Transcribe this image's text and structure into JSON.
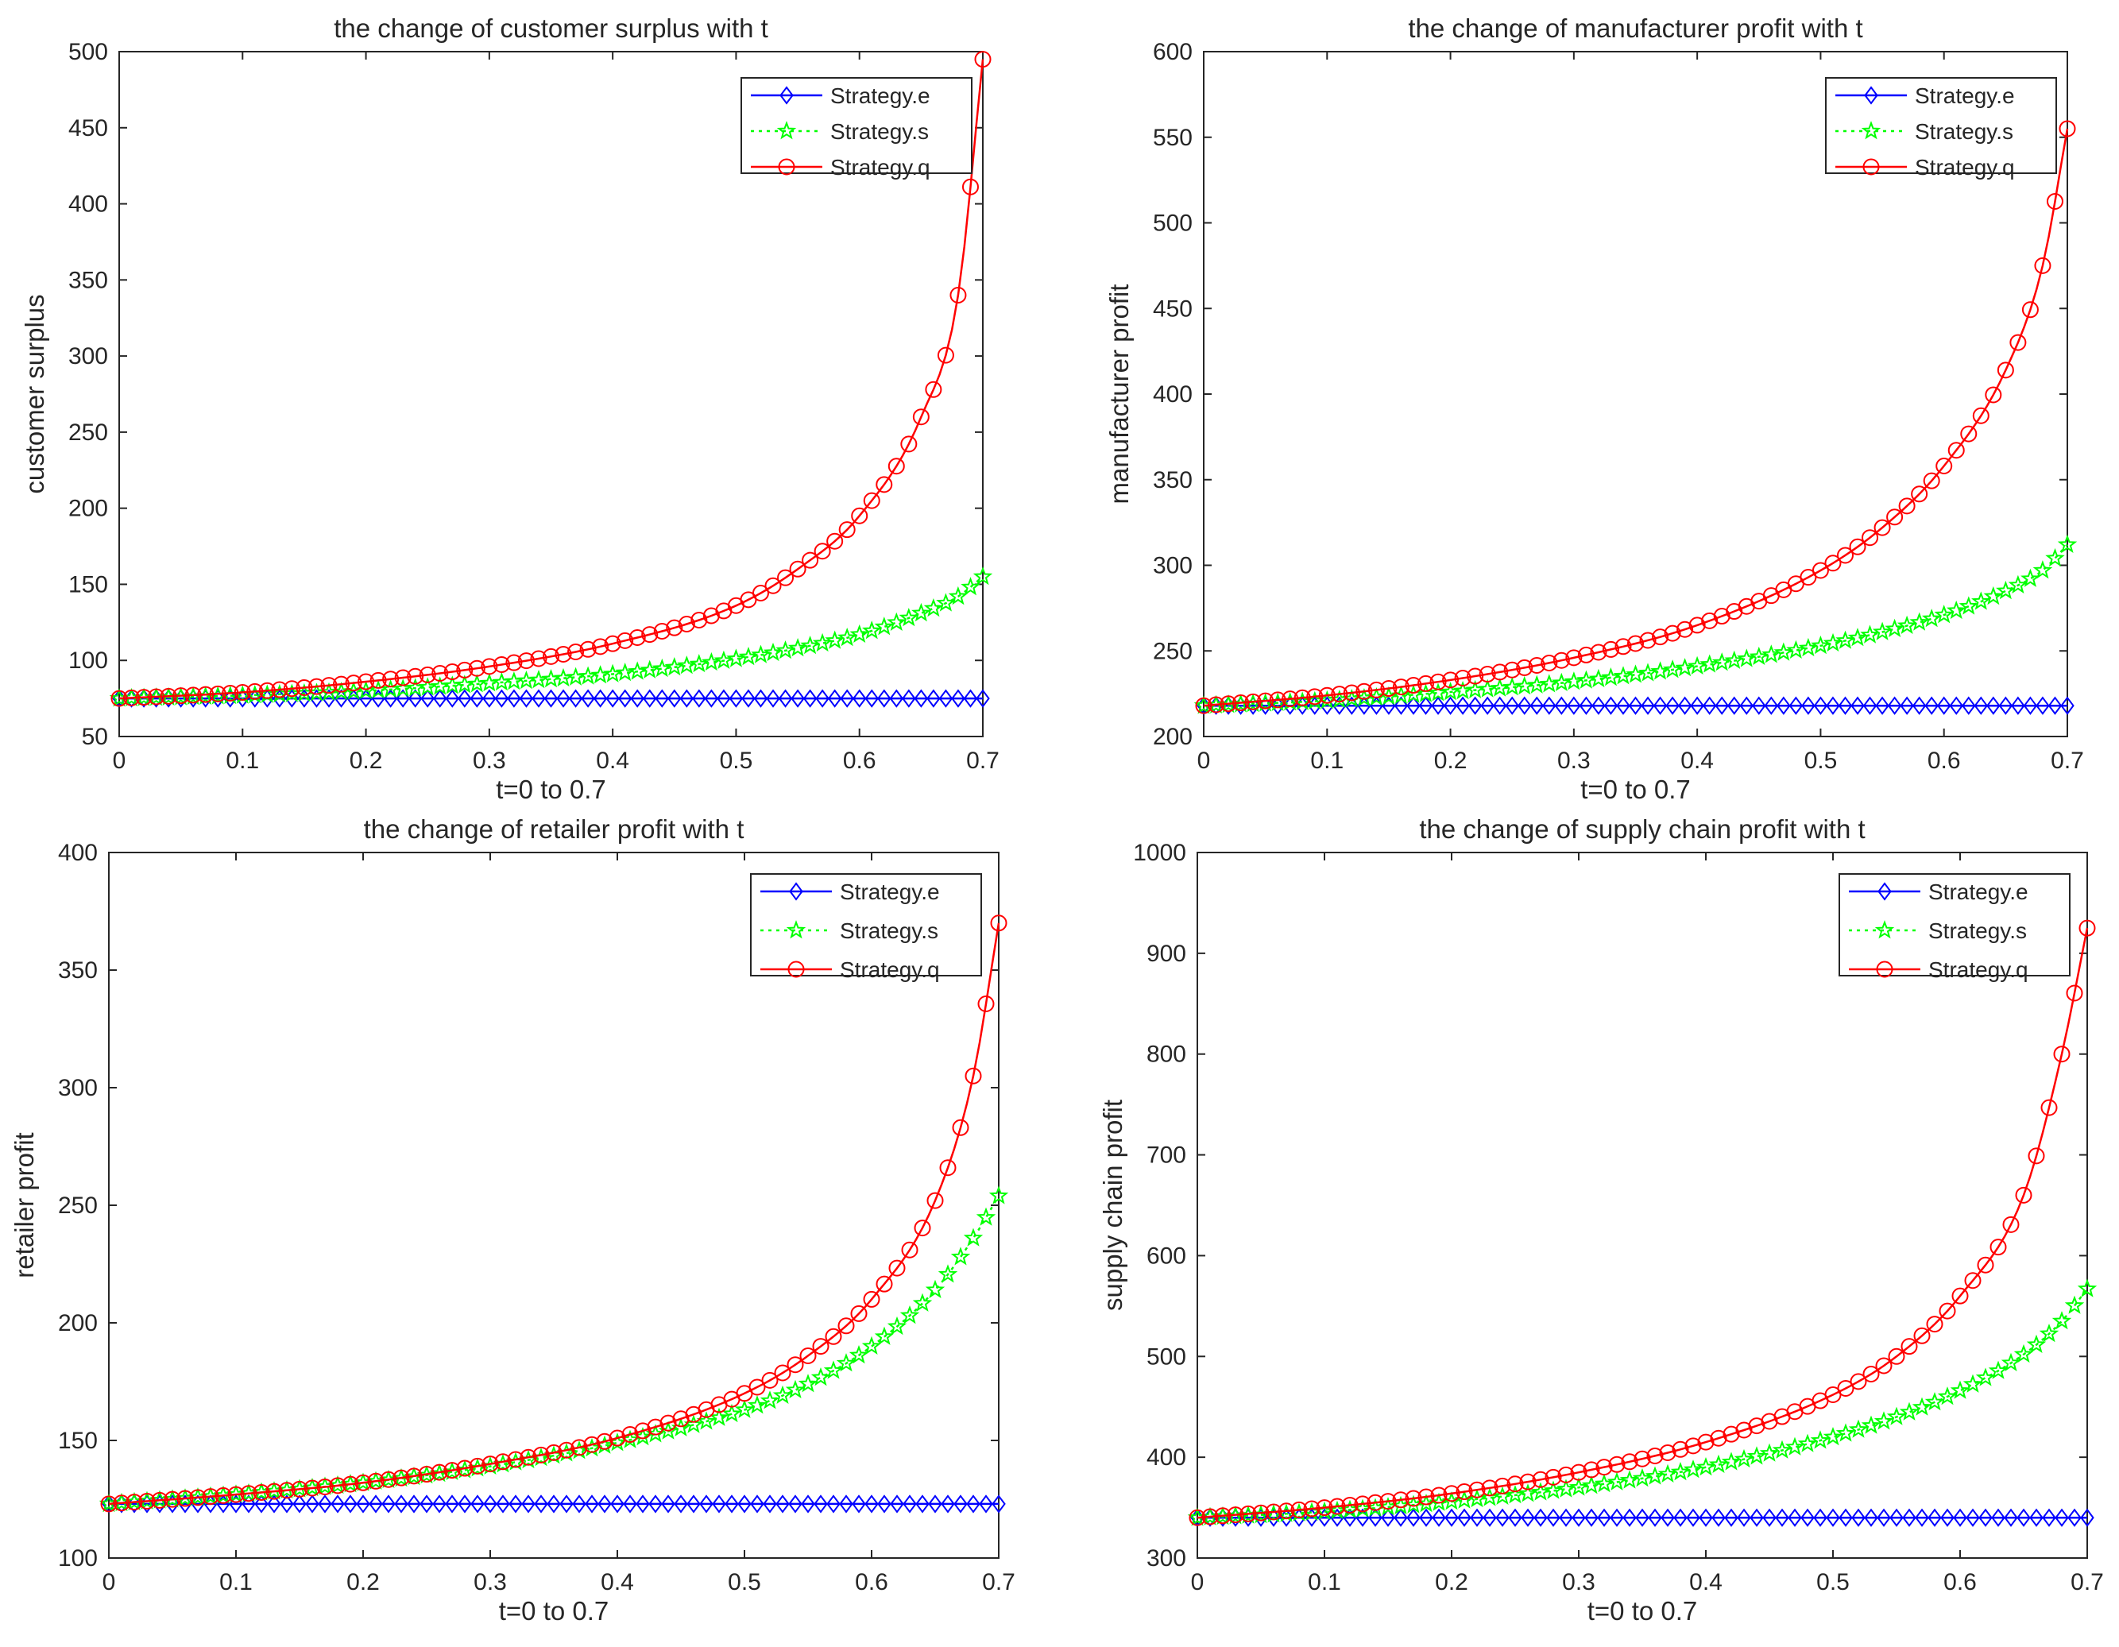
{
  "figure": {
    "background": "#ffffff",
    "axis_color": "#262626"
  },
  "series_styles": [
    {
      "key": "e",
      "color": "#0000ff",
      "marker": "diamond",
      "dash": ""
    },
    {
      "key": "s",
      "color": "#00ff00",
      "marker": "star",
      "dash": "4 6"
    },
    {
      "key": "q",
      "color": "#ff0000",
      "marker": "circle",
      "dash": ""
    }
  ],
  "chart_data": [
    {
      "type": "line",
      "title": "the change of customer surplus with t",
      "xlabel": "t=0 to 0.7",
      "ylabel": "customer surplus",
      "xlim": [
        0,
        0.7
      ],
      "ylim": [
        50,
        500
      ],
      "xticks": [
        "0",
        "0.1",
        "0.2",
        "0.3",
        "0.4",
        "0.5",
        "0.6",
        "0.7"
      ],
      "yticks": [
        "50",
        "100",
        "150",
        "200",
        "250",
        "300",
        "350",
        "400",
        "450",
        "500"
      ],
      "legend_position": "top-right",
      "x": [
        0,
        0.1,
        0.2,
        0.3,
        0.4,
        0.5,
        0.55,
        0.6,
        0.65,
        0.68,
        0.7
      ],
      "series": [
        {
          "name": "Strategy.e",
          "values": [
            75,
            75,
            75,
            75,
            75,
            75,
            75,
            75,
            75,
            75,
            75
          ]
        },
        {
          "name": "Strategy.s",
          "values": [
            75,
            77,
            80,
            85,
            91,
            101,
            108,
            117,
            131,
            142,
            155
          ]
        },
        {
          "name": "Strategy.q",
          "values": [
            75,
            79,
            86,
            96,
            111,
            136,
            160,
            195,
            260,
            340,
            495
          ]
        }
      ]
    },
    {
      "type": "line",
      "title": "the change of manufacturer profit with t",
      "xlabel": "t=0 to 0.7",
      "ylabel": "manufacturer profit",
      "xlim": [
        0,
        0.7
      ],
      "ylim": [
        200,
        600
      ],
      "xticks": [
        "0",
        "0.1",
        "0.2",
        "0.3",
        "0.4",
        "0.5",
        "0.6",
        "0.7"
      ],
      "yticks": [
        "200",
        "250",
        "300",
        "350",
        "400",
        "450",
        "500",
        "550",
        "600"
      ],
      "legend_position": "top-right",
      "x": [
        0,
        0.1,
        0.2,
        0.3,
        0.4,
        0.5,
        0.55,
        0.6,
        0.65,
        0.68,
        0.7
      ],
      "series": [
        {
          "name": "Strategy.e",
          "values": [
            218,
            218,
            218,
            218,
            218,
            218,
            218,
            218,
            218,
            218,
            218
          ]
        },
        {
          "name": "Strategy.s",
          "values": [
            218,
            221,
            226,
            232,
            241,
            253,
            261,
            271,
            285,
            297,
            312
          ]
        },
        {
          "name": "Strategy.q",
          "values": [
            218,
            224,
            233,
            246,
            265,
            297,
            322,
            358,
            414,
            475,
            555
          ]
        }
      ]
    },
    {
      "type": "line",
      "title": "the change of retailer profit with t",
      "xlabel": "t=0 to 0.7",
      "ylabel": "retailer profit",
      "xlim": [
        0,
        0.7
      ],
      "ylim": [
        100,
        400
      ],
      "xticks": [
        "0",
        "0.1",
        "0.2",
        "0.3",
        "0.4",
        "0.5",
        "0.6",
        "0.7"
      ],
      "yticks": [
        "100",
        "150",
        "200",
        "250",
        "300",
        "350",
        "400"
      ],
      "legend_position": "top-right",
      "x": [
        0,
        0.1,
        0.2,
        0.3,
        0.4,
        0.5,
        0.55,
        0.6,
        0.65,
        0.68,
        0.7
      ],
      "series": [
        {
          "name": "Strategy.e",
          "values": [
            123,
            123,
            123,
            123,
            123,
            123,
            123,
            123,
            123,
            123,
            123
          ]
        },
        {
          "name": "Strategy.s",
          "values": [
            123,
            127,
            132,
            139,
            149,
            163,
            174,
            190,
            214,
            236,
            254
          ]
        },
        {
          "name": "Strategy.q",
          "values": [
            123,
            127,
            132,
            140,
            151,
            170,
            186,
            210,
            252,
            305,
            370
          ]
        }
      ]
    },
    {
      "type": "line",
      "title": "the change of supply chain profit with t",
      "xlabel": "t=0 to 0.7",
      "ylabel": "supply chain profit",
      "xlim": [
        0,
        0.7
      ],
      "ylim": [
        300,
        1000
      ],
      "xticks": [
        "0",
        "0.1",
        "0.2",
        "0.3",
        "0.4",
        "0.5",
        "0.6",
        "0.7"
      ],
      "yticks": [
        "300",
        "400",
        "500",
        "600",
        "700",
        "800",
        "900",
        "1000"
      ],
      "legend_position": "top-right",
      "x": [
        0,
        0.1,
        0.2,
        0.3,
        0.4,
        0.5,
        0.55,
        0.6,
        0.65,
        0.68,
        0.7
      ],
      "series": [
        {
          "name": "Strategy.e",
          "values": [
            340,
            340,
            340,
            340,
            340,
            340,
            340,
            340,
            340,
            340,
            340
          ]
        },
        {
          "name": "Strategy.s",
          "values": [
            340,
            346,
            356,
            370,
            390,
            420,
            440,
            466,
            502,
            535,
            567
          ]
        },
        {
          "name": "Strategy.q",
          "values": [
            340,
            350,
            364,
            385,
            415,
            462,
            500,
            560,
            660,
            800,
            925
          ]
        }
      ]
    }
  ]
}
